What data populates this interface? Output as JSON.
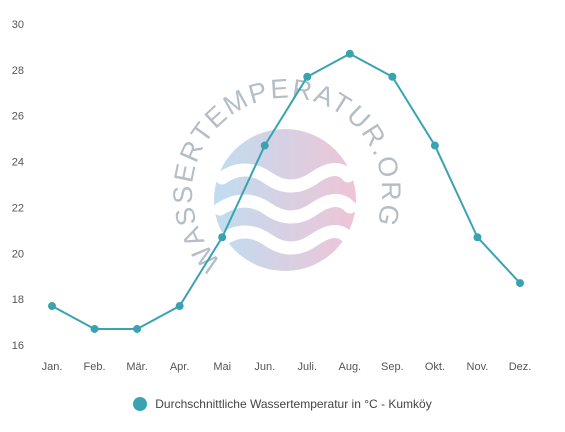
{
  "colors": {
    "series": "#3aa3b0",
    "watermark_blue": "#9fcbe8",
    "watermark_pink": "#e6a6c0",
    "watermark_text": "#8f9aa8"
  },
  "watermark": {
    "text": "WASSERTEMPERATUR.ORG",
    "icon": "waves-logo-icon"
  },
  "chart_data": {
    "type": "line",
    "categories": [
      "Jan.",
      "Feb.",
      "Mär.",
      "Apr.",
      "Mai",
      "Jun.",
      "Juli.",
      "Aug.",
      "Sep.",
      "Okt.",
      "Nov.",
      "Dez."
    ],
    "series": [
      {
        "name": "Durchschnittliche Wassertemperatur in °C - Kumköy",
        "values": [
          17.7,
          16.7,
          16.7,
          17.7,
          20.7,
          24.7,
          27.7,
          28.7,
          27.7,
          24.7,
          20.7,
          18.7
        ]
      }
    ],
    "yticks": [
      16,
      18,
      20,
      22,
      24,
      26,
      28,
      30
    ],
    "ylim": [
      16,
      30
    ],
    "grid": false,
    "legend_position": "bottom-center",
    "title": "",
    "xlabel": "",
    "ylabel": ""
  }
}
